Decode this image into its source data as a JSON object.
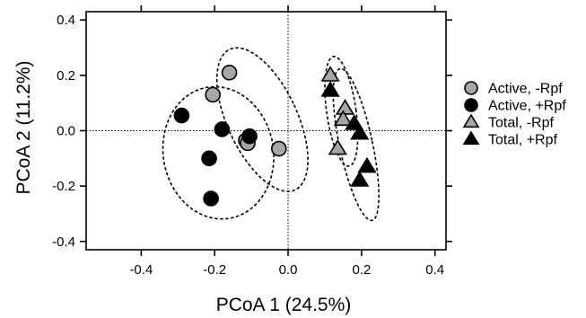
{
  "chart_data": {
    "type": "scatter",
    "xlabel": "PCoA 1 (24.5%)",
    "ylabel": "PCoA 2 (11.2%)",
    "xlim": [
      -0.55,
      0.43
    ],
    "ylim": [
      -0.43,
      0.43
    ],
    "xticks": [
      -0.4,
      -0.2,
      0.0,
      0.2,
      0.4
    ],
    "xtick_labels": [
      "-0.4",
      "-0.2",
      "0.0",
      "0.2",
      "0.4"
    ],
    "yticks": [
      -0.4,
      -0.2,
      0.0,
      0.2,
      0.4
    ],
    "ytick_labels": [
      "-0.4",
      "-0.2",
      "0.0",
      "0.2",
      "0.4"
    ],
    "reference_lines": {
      "x": 0,
      "y": 0,
      "style": "dotted"
    },
    "legend_position": "right",
    "series": [
      {
        "name": "Active, -Rpf",
        "marker": "circle",
        "color": "#a6a6a6",
        "points": [
          [
            -0.16,
            0.21
          ],
          [
            -0.205,
            0.13
          ],
          [
            -0.115,
            -0.035
          ],
          [
            -0.11,
            -0.045
          ],
          [
            -0.025,
            -0.065
          ]
        ]
      },
      {
        "name": "Active, +Rpf",
        "marker": "circle",
        "color": "#000000",
        "points": [
          [
            -0.29,
            0.055
          ],
          [
            -0.18,
            0.005
          ],
          [
            -0.105,
            -0.02
          ],
          [
            -0.215,
            -0.1
          ],
          [
            -0.21,
            -0.245
          ]
        ]
      },
      {
        "name": "Total, -Rpf",
        "marker": "triangle",
        "color": "#a6a6a6",
        "points": [
          [
            0.115,
            0.2
          ],
          [
            0.155,
            0.08
          ],
          [
            0.15,
            0.04
          ],
          [
            0.135,
            -0.065
          ]
        ]
      },
      {
        "name": "Total, +Rpf",
        "marker": "triangle",
        "color": "#000000",
        "points": [
          [
            0.115,
            0.145
          ],
          [
            0.18,
            0.025
          ],
          [
            0.195,
            -0.01
          ],
          [
            0.215,
            -0.13
          ],
          [
            0.195,
            -0.18
          ]
        ]
      }
    ],
    "ellipses": [
      {
        "group": "Active, -Rpf",
        "cx": -0.07,
        "cy": 0.04,
        "rx": 0.095,
        "ry": 0.28,
        "angle_deg": -25
      },
      {
        "group": "Active, +Rpf",
        "cx": -0.19,
        "cy": -0.08,
        "rx": 0.15,
        "ry": 0.24,
        "angle_deg": -10
      },
      {
        "group": "Total, -Rpf",
        "cx": 0.145,
        "cy": 0.07,
        "rx": 0.04,
        "ry": 0.2,
        "angle_deg": -8
      },
      {
        "group": "Total, +Rpf",
        "cx": 0.185,
        "cy": -0.05,
        "rx": 0.045,
        "ry": 0.28,
        "angle_deg": -12
      }
    ]
  }
}
